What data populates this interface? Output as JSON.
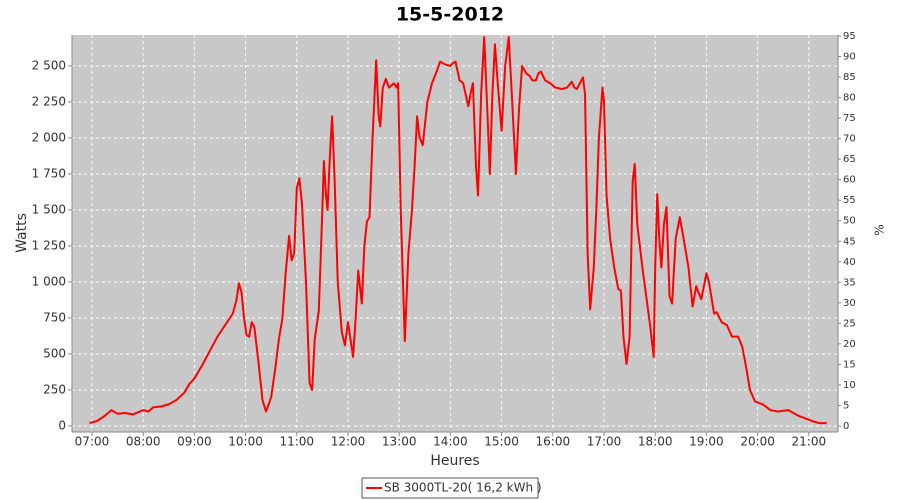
{
  "chart_data": {
    "type": "line",
    "title": "15-5-2012",
    "x_label": "Heures",
    "y_label": "Watts",
    "y2_label": "%",
    "grid": true,
    "xlim": [
      6.61,
      21.57
    ],
    "xticks": [
      {
        "value": 7,
        "label": "07:00"
      },
      {
        "value": 8,
        "label": "08:00"
      },
      {
        "value": 9,
        "label": "09:00"
      },
      {
        "value": 10,
        "label": "10:00"
      },
      {
        "value": 11,
        "label": "11:00"
      },
      {
        "value": 12,
        "label": "12:00"
      },
      {
        "value": 13,
        "label": "13:00"
      },
      {
        "value": 14,
        "label": "14:00"
      },
      {
        "value": 15,
        "label": "15:00"
      },
      {
        "value": 16,
        "label": "16:00"
      },
      {
        "value": 17,
        "label": "17:00"
      },
      {
        "value": 18,
        "label": "18:00"
      },
      {
        "value": 19,
        "label": "19:00"
      },
      {
        "value": 20,
        "label": "20:00"
      },
      {
        "value": 21,
        "label": "21:00"
      }
    ],
    "ylim": [
      -42,
      2715
    ],
    "yticks": [
      0,
      250,
      500,
      750,
      {
        "value": 1000,
        "label": "1 000"
      },
      {
        "value": 1250,
        "label": "1 250"
      },
      {
        "value": 1500,
        "label": "1 500"
      },
      {
        "value": 1750,
        "label": "1 750"
      },
      {
        "value": 2000,
        "label": "2 000"
      },
      {
        "value": 2250,
        "label": "2 250"
      },
      {
        "value": 2500,
        "label": "2 500"
      }
    ],
    "y2lim": [
      -1.46,
      95.24
    ],
    "y2ticks": [
      0,
      5,
      10,
      15,
      20,
      25,
      30,
      35,
      40,
      45,
      50,
      55,
      60,
      65,
      70,
      75,
      80,
      85,
      90,
      95
    ],
    "x": [
      6.95,
      7.1,
      7.25,
      7.38,
      7.5,
      7.65,
      7.8,
      8.0,
      8.1,
      8.2,
      8.35,
      8.5,
      8.65,
      8.8,
      8.9,
      9.0,
      9.15,
      9.3,
      9.45,
      9.6,
      9.75,
      9.82,
      9.87,
      9.92,
      9.97,
      10.02,
      10.07,
      10.12,
      10.17,
      10.25,
      10.33,
      10.4,
      10.5,
      10.58,
      10.65,
      10.72,
      10.78,
      10.85,
      10.9,
      10.95,
      11.0,
      11.05,
      11.1,
      11.18,
      11.25,
      11.3,
      11.35,
      11.43,
      11.48,
      11.53,
      11.57,
      11.6,
      11.65,
      11.69,
      11.74,
      11.8,
      11.88,
      11.94,
      12.0,
      12.05,
      12.1,
      12.15,
      12.2,
      12.27,
      12.32,
      12.37,
      12.42,
      12.48,
      12.55,
      12.6,
      12.63,
      12.68,
      12.74,
      12.8,
      12.9,
      12.95,
      12.98,
      13.03,
      13.11,
      13.18,
      13.25,
      13.3,
      13.35,
      13.4,
      13.46,
      13.55,
      13.64,
      13.72,
      13.8,
      13.9,
      14.0,
      14.05,
      14.1,
      14.18,
      14.25,
      14.35,
      14.4,
      14.44,
      14.5,
      14.54,
      14.6,
      14.66,
      14.72,
      14.77,
      14.82,
      14.87,
      14.92,
      15.0,
      15.07,
      15.14,
      15.2,
      15.28,
      15.34,
      15.4,
      15.48,
      15.55,
      15.6,
      15.67,
      15.72,
      15.77,
      15.85,
      15.95,
      16.05,
      16.18,
      16.28,
      16.37,
      16.42,
      16.47,
      16.53,
      16.59,
      16.63,
      16.68,
      16.73,
      16.8,
      16.85,
      16.9,
      16.97,
      17.0,
      17.05,
      17.12,
      17.2,
      17.28,
      17.33,
      17.38,
      17.44,
      17.5,
      17.56,
      17.6,
      17.65,
      17.75,
      17.9,
      17.97,
      18.0,
      18.04,
      18.08,
      18.12,
      18.17,
      18.22,
      18.28,
      18.33,
      18.4,
      18.48,
      18.58,
      18.65,
      18.73,
      18.8,
      18.9,
      19.0,
      19.05,
      19.15,
      19.2,
      19.3,
      19.4,
      19.5,
      19.62,
      19.7,
      19.78,
      19.85,
      19.95,
      20.1,
      20.25,
      20.4,
      20.6,
      20.8,
      20.95,
      21.1,
      21.2,
      21.35
    ],
    "series": [
      {
        "name": "SB 3000TL-20( 16,2 kWh )",
        "color": "#ff0000",
        "values": [
          20,
          35,
          70,
          110,
          85,
          90,
          80,
          110,
          100,
          130,
          135,
          150,
          180,
          230,
          290,
          330,
          420,
          520,
          620,
          700,
          780,
          870,
          990,
          930,
          750,
          630,
          620,
          720,
          690,
          450,
          180,
          100,
          200,
          400,
          600,
          750,
          1050,
          1320,
          1150,
          1200,
          1650,
          1720,
          1550,
          1000,
          300,
          250,
          600,
          800,
          1300,
          1840,
          1600,
          1500,
          1900,
          2150,
          1700,
          1000,
          650,
          560,
          720,
          600,
          480,
          750,
          1080,
          850,
          1250,
          1420,
          1450,
          2000,
          2540,
          2150,
          2080,
          2350,
          2410,
          2350,
          2380,
          2350,
          2380,
          1500,
          590,
          1200,
          1500,
          1800,
          2150,
          2000,
          1950,
          2250,
          2380,
          2450,
          2530,
          2510,
          2500,
          2520,
          2530,
          2400,
          2380,
          2220,
          2320,
          2380,
          1800,
          1600,
          2300,
          2700,
          2200,
          1750,
          2300,
          2650,
          2400,
          2050,
          2500,
          2700,
          2300,
          1750,
          2200,
          2500,
          2450,
          2430,
          2400,
          2400,
          2450,
          2460,
          2400,
          2380,
          2350,
          2340,
          2350,
          2390,
          2350,
          2340,
          2380,
          2420,
          2300,
          1200,
          810,
          1100,
          1500,
          2000,
          2350,
          2250,
          1600,
          1300,
          1100,
          950,
          940,
          620,
          430,
          620,
          1700,
          1820,
          1400,
          1100,
          700,
          480,
          1100,
          1610,
          1300,
          1100,
          1400,
          1520,
          900,
          850,
          1300,
          1450,
          1250,
          1100,
          830,
          970,
          880,
          1060,
          1000,
          780,
          790,
          720,
          700,
          620,
          620,
          550,
          400,
          250,
          170,
          150,
          110,
          100,
          110,
          70,
          50,
          30,
          20,
          20
        ]
      }
    ]
  }
}
